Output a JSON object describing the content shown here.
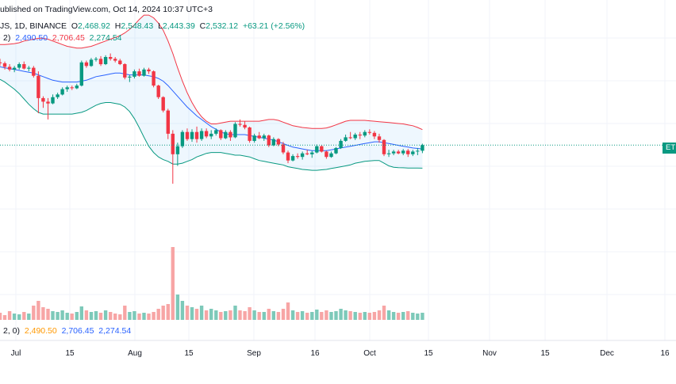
{
  "header": {
    "published": "ublished on TradingView.com, Oct 14, 2024 10:37 UTC+3",
    "symbol": "JS, 1D, BINANCE",
    "o_label": "O",
    "o_value": "2,468.92",
    "h_label": "H",
    "h_value": "2,548.43",
    "l_label": "L",
    "l_value": "2,443.39",
    "c_label": "C",
    "c_value": "2,532.12",
    "change": "+63.21 (+2.56%)"
  },
  "bb_legend": {
    "prefix": "2)",
    "basis": "2,490.50",
    "upper": "2,706.45",
    "lower": "2,274.54"
  },
  "ind2_legend": {
    "prefix": "2, 0)",
    "v1": "2,490.50",
    "v2": "2,706.45",
    "v3": "2,274.54"
  },
  "price_tag": "ET",
  "colors": {
    "up": "#089981",
    "down": "#f23645",
    "basis": "#2962ff",
    "upper_band": "#f23645",
    "lower_band": "#089981",
    "band_fill": "#2196f3",
    "vol_up": "#7dc9b9",
    "vol_down": "#f7a5a5",
    "grid": "#f0f3fa"
  },
  "chart_data": {
    "type": "candlestick",
    "x_axis_labels": [
      "Jul",
      "15",
      "Aug",
      "15",
      "Sep",
      "16",
      "Oct",
      "15",
      "Nov",
      "15",
      "Dec",
      "16"
    ],
    "last_close": 2532.12,
    "candles_ohlc": [
      [
        3460,
        3500,
        3420,
        3450
      ],
      [
        3450,
        3470,
        3380,
        3410
      ],
      [
        3410,
        3440,
        3360,
        3380
      ],
      [
        3380,
        3420,
        3350,
        3400
      ],
      [
        3400,
        3460,
        3380,
        3440
      ],
      [
        3440,
        3470,
        3380,
        3390
      ],
      [
        3390,
        3420,
        3360,
        3400
      ],
      [
        3400,
        3420,
        3290,
        3310
      ],
      [
        3310,
        3360,
        2890,
        3060
      ],
      [
        3060,
        3080,
        2950,
        3020
      ],
      [
        3020,
        3060,
        2820,
        3000
      ],
      [
        3000,
        3100,
        2990,
        3070
      ],
      [
        3070,
        3120,
        3050,
        3100
      ],
      [
        3100,
        3180,
        3090,
        3160
      ],
      [
        3160,
        3200,
        3130,
        3180
      ],
      [
        3180,
        3200,
        3150,
        3170
      ],
      [
        3170,
        3220,
        3160,
        3200
      ],
      [
        3200,
        3480,
        3190,
        3460
      ],
      [
        3460,
        3480,
        3400,
        3420
      ],
      [
        3420,
        3510,
        3410,
        3490
      ],
      [
        3490,
        3520,
        3470,
        3500
      ],
      [
        3500,
        3530,
        3420,
        3440
      ],
      [
        3440,
        3540,
        3430,
        3520
      ],
      [
        3520,
        3560,
        3480,
        3500
      ],
      [
        3500,
        3520,
        3460,
        3480
      ],
      [
        3480,
        3500,
        3430,
        3440
      ],
      [
        3440,
        3450,
        3270,
        3290
      ],
      [
        3290,
        3320,
        3240,
        3300
      ],
      [
        3300,
        3380,
        3280,
        3360
      ],
      [
        3360,
        3390,
        3300,
        3310
      ],
      [
        3310,
        3400,
        3300,
        3380
      ],
      [
        3380,
        3400,
        3330,
        3360
      ],
      [
        3360,
        3370,
        3180,
        3200
      ],
      [
        3200,
        3210,
        3050,
        3070
      ],
      [
        3070,
        3080,
        2900,
        2920
      ],
      [
        2920,
        2940,
        2600,
        2660
      ],
      [
        2660,
        2700,
        2100,
        2430
      ],
      [
        2430,
        2560,
        2300,
        2520
      ],
      [
        2520,
        2700,
        2500,
        2680
      ],
      [
        2680,
        2720,
        2580,
        2600
      ],
      [
        2600,
        2710,
        2570,
        2680
      ],
      [
        2680,
        2740,
        2560,
        2600
      ],
      [
        2600,
        2720,
        2580,
        2690
      ],
      [
        2690,
        2720,
        2610,
        2630
      ],
      [
        2630,
        2700,
        2600,
        2660
      ],
      [
        2660,
        2720,
        2640,
        2700
      ],
      [
        2700,
        2710,
        2590,
        2610
      ],
      [
        2610,
        2700,
        2600,
        2680
      ],
      [
        2680,
        2700,
        2580,
        2620
      ],
      [
        2620,
        2790,
        2610,
        2770
      ],
      [
        2770,
        2820,
        2740,
        2760
      ],
      [
        2760,
        2800,
        2710,
        2730
      ],
      [
        2730,
        2740,
        2560,
        2580
      ],
      [
        2580,
        2660,
        2560,
        2640
      ],
      [
        2640,
        2680,
        2600,
        2610
      ],
      [
        2610,
        2660,
        2580,
        2640
      ],
      [
        2640,
        2650,
        2510,
        2530
      ],
      [
        2530,
        2620,
        2520,
        2600
      ],
      [
        2600,
        2610,
        2520,
        2540
      ],
      [
        2540,
        2570,
        2430,
        2450
      ],
      [
        2450,
        2470,
        2330,
        2360
      ],
      [
        2360,
        2430,
        2350,
        2410
      ],
      [
        2410,
        2440,
        2380,
        2400
      ],
      [
        2400,
        2460,
        2370,
        2440
      ],
      [
        2440,
        2480,
        2420,
        2430
      ],
      [
        2430,
        2470,
        2390,
        2450
      ],
      [
        2450,
        2540,
        2440,
        2520
      ],
      [
        2520,
        2530,
        2450,
        2460
      ],
      [
        2460,
        2470,
        2380,
        2400
      ],
      [
        2400,
        2460,
        2390,
        2440
      ],
      [
        2440,
        2510,
        2430,
        2500
      ],
      [
        2500,
        2600,
        2490,
        2580
      ],
      [
        2580,
        2650,
        2570,
        2620
      ],
      [
        2620,
        2680,
        2600,
        2610
      ],
      [
        2610,
        2670,
        2590,
        2650
      ],
      [
        2650,
        2680,
        2600,
        2640
      ],
      [
        2640,
        2700,
        2620,
        2680
      ],
      [
        2680,
        2710,
        2650,
        2670
      ],
      [
        2670,
        2690,
        2600,
        2630
      ],
      [
        2630,
        2660,
        2560,
        2590
      ],
      [
        2590,
        2600,
        2410,
        2430
      ],
      [
        2430,
        2480,
        2400,
        2440
      ],
      [
        2440,
        2480,
        2420,
        2460
      ],
      [
        2460,
        2480,
        2430,
        2440
      ],
      [
        2440,
        2490,
        2420,
        2470
      ],
      [
        2470,
        2490,
        2400,
        2430
      ],
      [
        2430,
        2480,
        2410,
        2460
      ],
      [
        2460,
        2500,
        2420,
        2469
      ],
      [
        2469,
        2548,
        2443,
        2532
      ]
    ],
    "volume": [
      0.45,
      0.3,
      0.55,
      0.4,
      0.35,
      0.5,
      0.4,
      0.9,
      1.2,
      0.8,
      0.7,
      0.55,
      0.5,
      0.6,
      0.45,
      0.4,
      0.5,
      0.85,
      0.6,
      0.5,
      0.55,
      0.45,
      0.6,
      0.5,
      0.4,
      0.35,
      0.9,
      0.5,
      0.55,
      0.4,
      0.45,
      0.4,
      0.5,
      0.7,
      0.9,
      1.0,
      4.6,
      1.6,
      1.2,
      0.9,
      0.8,
      0.7,
      0.9,
      0.6,
      0.7,
      0.6,
      0.5,
      0.55,
      0.6,
      0.9,
      0.6,
      0.55,
      0.8,
      0.6,
      0.5,
      0.5,
      0.7,
      0.55,
      0.5,
      0.7,
      1.1,
      0.6,
      0.5,
      0.55,
      0.45,
      0.5,
      0.65,
      0.5,
      0.6,
      0.5,
      0.55,
      0.7,
      0.6,
      0.55,
      0.5,
      0.45,
      0.5,
      0.45,
      0.5,
      0.6,
      0.9,
      0.6,
      0.5,
      0.45,
      0.5,
      0.55,
      0.45,
      0.4,
      0.45
    ],
    "basis": [
      3410,
      3400,
      3390,
      3380,
      3370,
      3360,
      3350,
      3340,
      3320,
      3300,
      3280,
      3260,
      3250,
      3240,
      3240,
      3240,
      3240,
      3250,
      3260,
      3280,
      3300,
      3310,
      3320,
      3330,
      3340,
      3340,
      3330,
      3320,
      3320,
      3320,
      3320,
      3310,
      3300,
      3280,
      3250,
      3200,
      3140,
      3080,
      3020,
      2960,
      2910,
      2860,
      2820,
      2780,
      2740,
      2710,
      2680,
      2660,
      2650,
      2650,
      2650,
      2650,
      2640,
      2630,
      2620,
      2610,
      2600,
      2590,
      2570,
      2550,
      2530,
      2510,
      2500,
      2490,
      2480,
      2470,
      2470,
      2470,
      2470,
      2480,
      2490,
      2500,
      2510,
      2520,
      2530,
      2540,
      2550,
      2560,
      2570,
      2570,
      2560,
      2550,
      2540,
      2530,
      2520,
      2510,
      2500,
      2495,
      2490
    ],
    "upper": [
      3660,
      3660,
      3665,
      3670,
      3680,
      3700,
      3710,
      3720,
      3730,
      3730,
      3720,
      3700,
      3680,
      3660,
      3640,
      3630,
      3620,
      3620,
      3630,
      3640,
      3660,
      3680,
      3700,
      3720,
      3740,
      3760,
      3790,
      3830,
      3880,
      3940,
      3990,
      3990,
      3960,
      3900,
      3820,
      3700,
      3560,
      3400,
      3250,
      3120,
      3010,
      2920,
      2850,
      2800,
      2770,
      2770,
      2780,
      2790,
      2800,
      2800,
      2800,
      2800,
      2800,
      2800,
      2800,
      2810,
      2820,
      2820,
      2810,
      2790,
      2770,
      2750,
      2740,
      2730,
      2725,
      2720,
      2720,
      2720,
      2725,
      2740,
      2760,
      2780,
      2800,
      2810,
      2810,
      2810,
      2810,
      2805,
      2800,
      2795,
      2790,
      2785,
      2780,
      2775,
      2770,
      2760,
      2750,
      2730,
      2706
    ],
    "lower": [
      3270,
      3240,
      3200,
      3160,
      3110,
      3050,
      2990,
      2940,
      2900,
      2880,
      2880,
      2880,
      2880,
      2880,
      2880,
      2880,
      2890,
      2900,
      2920,
      2950,
      2980,
      3000,
      3010,
      3010,
      3000,
      2990,
      2960,
      2910,
      2830,
      2730,
      2620,
      2520,
      2450,
      2400,
      2370,
      2350,
      2320,
      2320,
      2330,
      2350,
      2370,
      2400,
      2420,
      2440,
      2450,
      2450,
      2450,
      2440,
      2430,
      2420,
      2420,
      2410,
      2400,
      2380,
      2360,
      2350,
      2340,
      2330,
      2320,
      2310,
      2290,
      2280,
      2270,
      2260,
      2255,
      2250,
      2250,
      2255,
      2260,
      2270,
      2280,
      2290,
      2300,
      2310,
      2330,
      2340,
      2350,
      2355,
      2360,
      2360,
      2330,
      2300,
      2285,
      2280,
      2278,
      2276,
      2275,
      2275,
      2274
    ]
  }
}
